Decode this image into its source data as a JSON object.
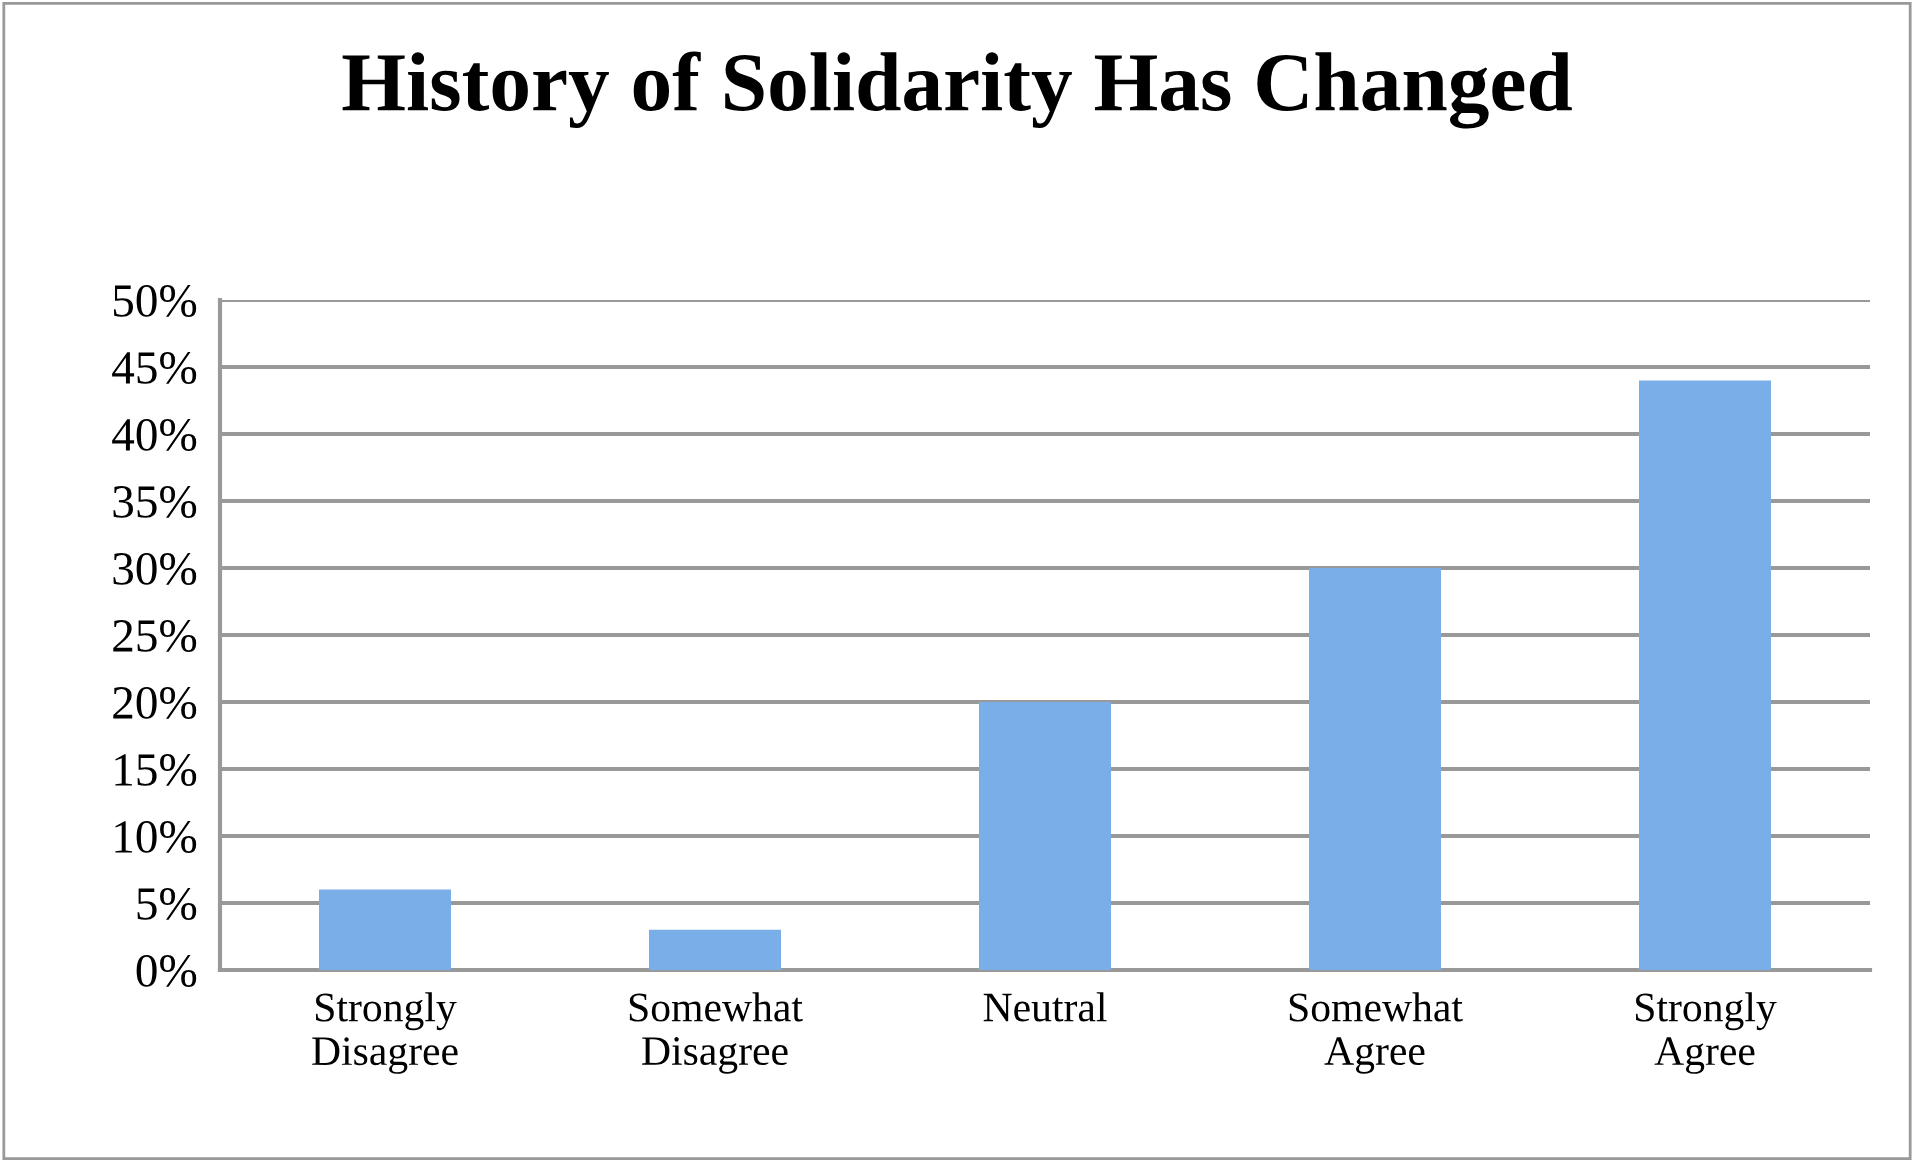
{
  "chart_data": {
    "type": "bar",
    "title": "History of Solidarity Has Changed",
    "categories": [
      "Strongly\nDisagree",
      "Somewhat\nDisagree",
      "Neutral",
      "Somewhat\nAgree",
      "Strongly\nAgree"
    ],
    "values": [
      6,
      3,
      20,
      30,
      44
    ],
    "color": "#7aaee8",
    "ylim": [
      0,
      50
    ],
    "yticks": [
      {
        "value": 0,
        "label": "0%"
      },
      {
        "value": 5,
        "label": "5%"
      },
      {
        "value": 10,
        "label": "10%"
      },
      {
        "value": 15,
        "label": "15%"
      },
      {
        "value": 20,
        "label": "20%"
      },
      {
        "value": 25,
        "label": "25%"
      },
      {
        "value": 30,
        "label": "30%"
      },
      {
        "value": 35,
        "label": "35%"
      },
      {
        "value": 40,
        "label": "40%"
      },
      {
        "value": 45,
        "label": "45%"
      },
      {
        "value": 50,
        "label": "50%"
      }
    ],
    "grid": "y"
  }
}
